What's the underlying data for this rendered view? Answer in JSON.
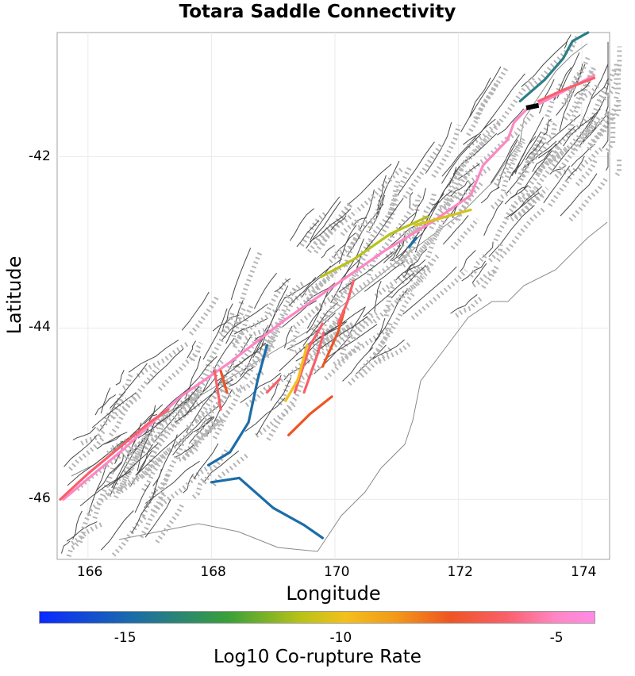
{
  "title": "Totara Saddle Connectivity",
  "x_axis": {
    "label": "Longitude",
    "ticks": [
      "166",
      "168",
      "170",
      "172",
      "174"
    ],
    "tick_values": [
      166,
      168,
      170,
      172,
      174
    ],
    "range": [
      165.5,
      174.45
    ]
  },
  "y_axis": {
    "label": "Latitude",
    "ticks": [
      "-42",
      "-44",
      "-46"
    ],
    "tick_values": [
      -42,
      -44,
      -46
    ],
    "range": [
      -46.7,
      -40.55
    ]
  },
  "colorbar": {
    "label": "Log10 Co-rupture Rate",
    "ticks": [
      "-15",
      "-10",
      "-5"
    ],
    "tick_values": [
      -15,
      -10,
      -5
    ],
    "range": [
      -17,
      -4.1
    ],
    "colors": [
      "#0a2aff",
      "#1b6da8",
      "#3aa039",
      "#b8c218",
      "#f3c01c",
      "#f29a18",
      "#ee5522",
      "#f95f6a",
      "#ff86c4",
      "#ff8be6"
    ]
  },
  "colors": {
    "fault_network": "#4a4a4a",
    "fault_surface": "#b5b5b5",
    "coastline": "#8a8a8a",
    "gridline": "#ebebeb",
    "source_fault": "#000000"
  },
  "chart_data": {
    "type": "map",
    "title": "Totara Saddle Connectivity",
    "xlabel": "Longitude",
    "ylabel": "Latitude",
    "xlim": [
      165.5,
      174.45
    ],
    "ylim": [
      -46.7,
      -40.55
    ],
    "color_metric": "Log10 Co-rupture Rate",
    "source_fault": {
      "name": "Totara Saddle",
      "path": [
        [
          173.1,
          -41.43
        ],
        [
          173.3,
          -41.4
        ]
      ]
    },
    "faults": [
      {
        "color": "#ff86c4",
        "value": -4.6,
        "path": [
          [
            165.6,
            -46.0
          ],
          [
            166.6,
            -45.4
          ],
          [
            167.5,
            -44.8
          ],
          [
            168.3,
            -44.4
          ],
          [
            169.2,
            -43.9
          ],
          [
            170.0,
            -43.5
          ],
          [
            170.8,
            -43.1
          ],
          [
            171.6,
            -42.75
          ],
          [
            172.2,
            -42.45
          ],
          [
            172.4,
            -42.1
          ],
          [
            172.6,
            -41.95
          ],
          [
            172.8,
            -41.8
          ],
          [
            172.9,
            -41.6
          ],
          [
            173.1,
            -41.45
          ],
          [
            173.4,
            -41.35
          ],
          [
            173.8,
            -41.2
          ],
          [
            174.2,
            -41.05
          ]
        ]
      },
      {
        "color": "#f95f6a",
        "value": -5.9,
        "path": [
          [
            165.55,
            -46.0
          ],
          [
            166.0,
            -45.7
          ],
          [
            166.5,
            -45.4
          ],
          [
            167.0,
            -45.1
          ],
          [
            167.3,
            -44.95
          ]
        ]
      },
      {
        "color": "#f95f6a",
        "value": -5.6,
        "path": [
          [
            173.3,
            -41.35
          ],
          [
            173.7,
            -41.22
          ],
          [
            174.2,
            -41.08
          ]
        ]
      },
      {
        "color": "#b8c218",
        "value": -10.9,
        "path": [
          [
            169.78,
            -43.4
          ],
          [
            170.3,
            -43.2
          ],
          [
            170.9,
            -42.9
          ],
          [
            171.2,
            -42.8
          ],
          [
            171.5,
            -42.7
          ]
        ]
      },
      {
        "color": "#d8c21a",
        "value": -10.3,
        "path": [
          [
            171.3,
            -42.8
          ],
          [
            171.8,
            -42.7
          ],
          [
            172.2,
            -42.62
          ]
        ]
      },
      {
        "color": "#f95f6a",
        "value": -6.2,
        "path": [
          [
            169.5,
            -44.75
          ],
          [
            169.72,
            -44.3
          ],
          [
            169.82,
            -44.05
          ]
        ]
      },
      {
        "color": "#ee5522",
        "value": -7.2,
        "path": [
          [
            169.8,
            -44.45
          ],
          [
            170.05,
            -44.05
          ],
          [
            170.15,
            -43.8
          ]
        ]
      },
      {
        "color": "#f95f6a",
        "value": -6.5,
        "path": [
          [
            169.35,
            -44.75
          ],
          [
            169.6,
            -44.2
          ],
          [
            169.8,
            -43.95
          ]
        ]
      },
      {
        "color": "#f95f6a",
        "value": -6.4,
        "path": [
          [
            170.05,
            -43.95
          ],
          [
            170.2,
            -43.7
          ],
          [
            170.3,
            -43.45
          ]
        ]
      },
      {
        "color": "#ee5522",
        "value": -7.4,
        "path": [
          [
            169.25,
            -45.25
          ],
          [
            169.6,
            -45.0
          ],
          [
            169.95,
            -44.8
          ]
        ]
      },
      {
        "color": "#f3c01c",
        "value": -9.8,
        "path": [
          [
            169.2,
            -44.85
          ],
          [
            169.4,
            -44.6
          ],
          [
            169.55,
            -44.2
          ]
        ]
      },
      {
        "color": "#f95f6a",
        "value": -6.0,
        "path": [
          [
            168.05,
            -44.5
          ],
          [
            168.15,
            -44.95
          ]
        ]
      },
      {
        "color": "#ee5522",
        "value": -7.0,
        "path": [
          [
            168.15,
            -44.5
          ],
          [
            168.25,
            -44.75
          ]
        ]
      },
      {
        "color": "#f95f6a",
        "value": -6.3,
        "path": [
          [
            168.9,
            -44.75
          ],
          [
            169.1,
            -44.6
          ]
        ]
      },
      {
        "color": "#1b6da8",
        "value": -14.6,
        "path": [
          [
            167.95,
            -45.6
          ],
          [
            168.3,
            -45.45
          ],
          [
            168.6,
            -45.1
          ],
          [
            168.75,
            -44.6
          ],
          [
            168.9,
            -44.2
          ]
        ]
      },
      {
        "color": "#1b6da8",
        "value": -14.8,
        "path": [
          [
            168.0,
            -45.8
          ],
          [
            168.45,
            -45.75
          ],
          [
            169.0,
            -46.1
          ],
          [
            169.5,
            -46.3
          ],
          [
            169.8,
            -46.45
          ]
        ]
      },
      {
        "color": "#1b6da8",
        "value": -14.7,
        "path": [
          [
            171.2,
            -43.05
          ],
          [
            171.32,
            -42.95
          ]
        ]
      },
      {
        "color": "#2b7f86",
        "value": -14.0,
        "path": [
          [
            173.0,
            -41.35
          ],
          [
            173.4,
            -41.1
          ],
          [
            173.7,
            -40.85
          ],
          [
            173.85,
            -40.65
          ],
          [
            174.1,
            -40.55
          ]
        ]
      }
    ]
  }
}
